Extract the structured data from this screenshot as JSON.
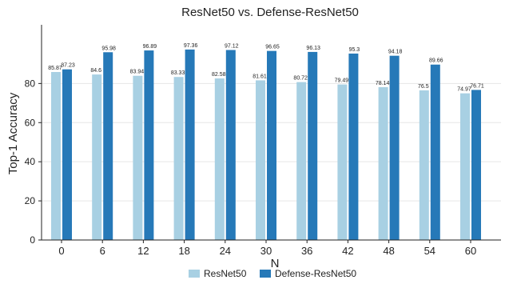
{
  "chart_data": {
    "type": "bar",
    "title": "ResNet50 vs. Defense-ResNet50",
    "xlabel": "N",
    "ylabel": "Top-1 Accuracy",
    "categories": [
      "0",
      "6",
      "12",
      "18",
      "24",
      "30",
      "36",
      "42",
      "48",
      "54",
      "60"
    ],
    "series": [
      {
        "name": "ResNet50",
        "color": "#a8d0e3",
        "values": [
          85.87,
          84.6,
          83.94,
          83.33,
          82.58,
          81.61,
          80.72,
          79.49,
          78.14,
          76.5,
          74.97
        ]
      },
      {
        "name": "Defense-ResNet50",
        "color": "#2679b8",
        "values": [
          87.23,
          95.98,
          96.89,
          97.36,
          97.12,
          96.65,
          96.13,
          95.3,
          94.18,
          89.66,
          76.71
        ]
      }
    ],
    "ylim": [
      0,
      110
    ],
    "yticks": [
      0,
      20,
      40,
      60,
      80
    ],
    "grid": true,
    "legend": "bottom"
  }
}
